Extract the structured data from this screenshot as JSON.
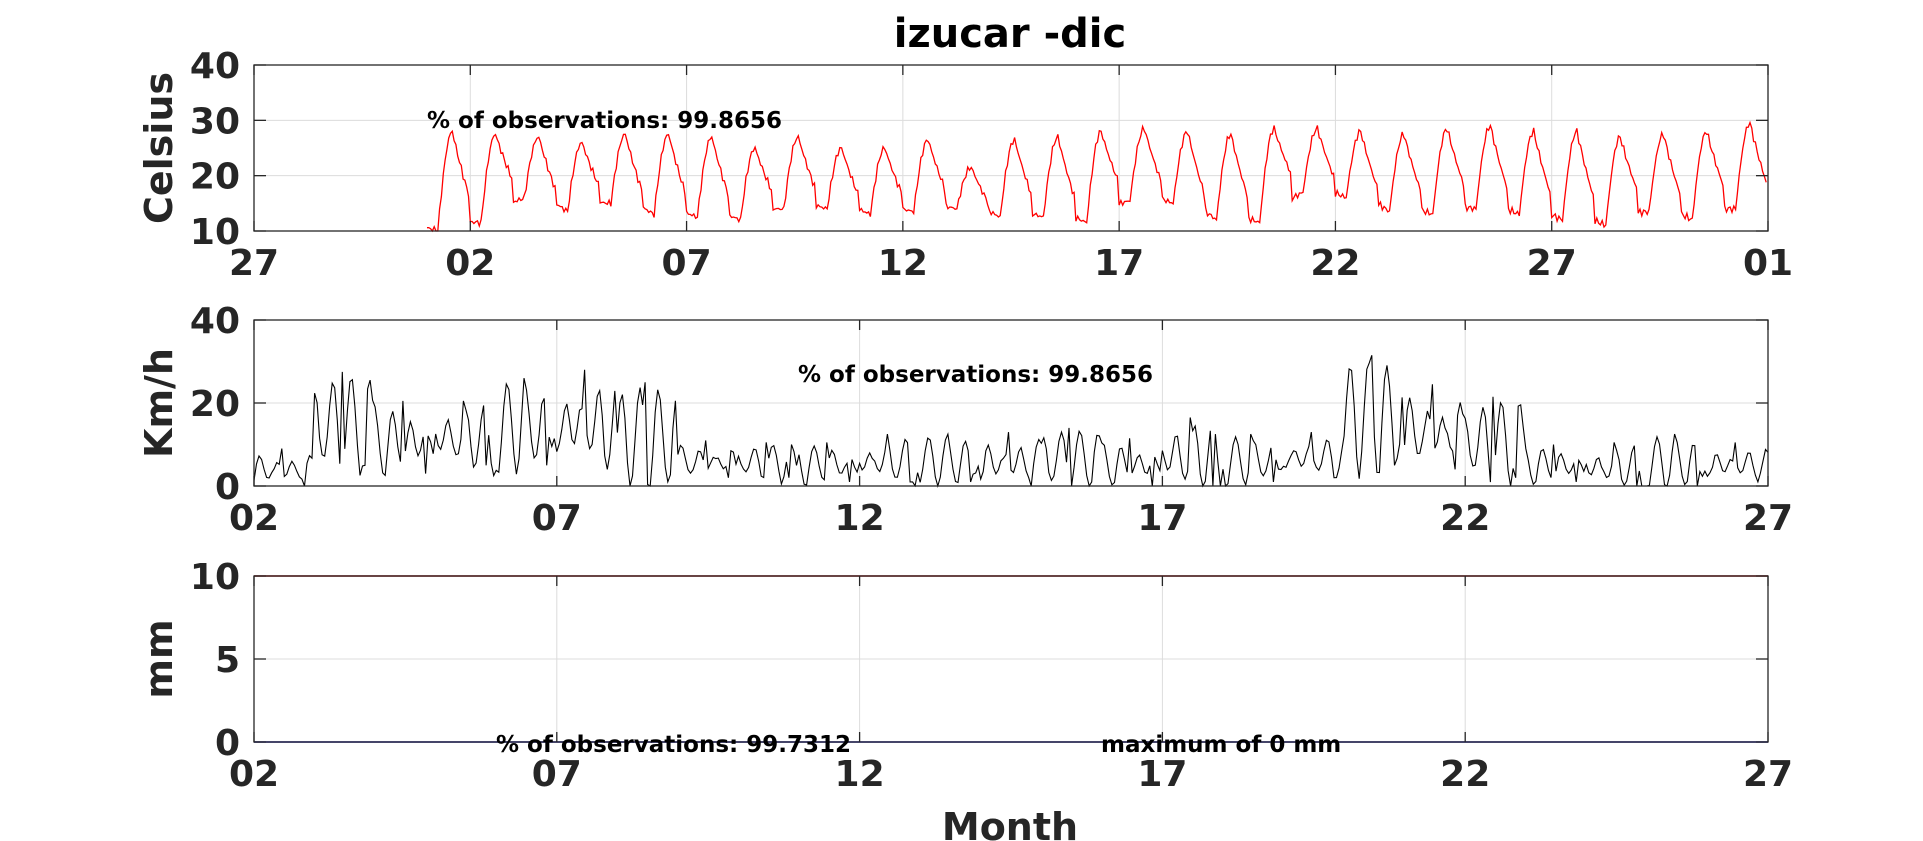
{
  "chart_data": [
    {
      "type": "line",
      "title": "izucar -dic",
      "ylabel": "Celsius",
      "ylim": [
        10,
        40
      ],
      "yticks": [
        10,
        20,
        30,
        40
      ],
      "xticks": [
        "27",
        "02",
        "07",
        "12",
        "17",
        "22",
        "27",
        "01"
      ],
      "annotation": "% of observations: 99.8656",
      "series": [
        {
          "color": "#ff0000",
          "x_unit": "day of month (27 = prior month)",
          "start_day": 31,
          "end_day": 66,
          "daily_max": [
            28,
            27.5,
            27,
            26,
            27.5,
            27.5,
            27,
            25,
            27,
            25,
            25,
            26.5,
            21.5,
            26.5,
            27,
            28,
            28.5,
            28,
            27.5,
            28.5,
            28.5,
            28,
            27.5,
            28.5,
            29,
            28,
            28,
            27,
            27.5,
            28,
            29.5
          ],
          "daily_min": [
            10,
            11.5,
            16,
            13.5,
            15,
            13,
            12.5,
            12,
            14,
            14,
            13,
            13.5,
            14,
            12.5,
            12.5,
            11.5,
            15.5,
            15,
            12,
            11.5,
            17,
            16,
            13.5,
            13,
            14,
            13,
            12,
            11,
            13.5,
            12,
            14
          ]
        }
      ]
    },
    {
      "type": "line",
      "ylabel": "Km/h",
      "ylim": [
        0,
        40
      ],
      "yticks": [
        0,
        20,
        40
      ],
      "xticks": [
        "02",
        "07",
        "12",
        "17",
        "22",
        "27"
      ],
      "annotation": "% of observations: 99.8656",
      "series": [
        {
          "color": "#000000",
          "x_unit": "day of month",
          "start_day": 2,
          "end_day": 27,
          "daily_max": [
            9,
            27.5,
            20.5,
            20.5,
            26,
            28,
            25,
            11,
            10.5,
            10.5,
            12.5,
            12.5,
            13,
            14,
            11.5,
            16.5,
            12.5,
            13,
            31.5,
            24.5,
            21.5,
            10,
            10.5,
            12.5,
            10.5,
            13
          ],
          "daily_min": [
            0,
            5,
            3,
            5,
            5,
            4,
            1,
            2,
            2,
            1,
            1,
            1,
            0,
            1,
            0,
            0,
            1,
            2,
            5,
            4,
            2,
            1,
            0,
            0,
            1,
            2
          ]
        }
      ]
    },
    {
      "type": "line",
      "ylabel": "mm",
      "xlabel": "Month",
      "ylim": [
        0,
        10
      ],
      "yticks": [
        0,
        5,
        10
      ],
      "xticks": [
        "02",
        "07",
        "12",
        "17",
        "22",
        "27"
      ],
      "annotations": [
        "% of observations: 99.7312",
        "maximum of 0 mm"
      ],
      "series": [
        {
          "color": "#0000cc",
          "x_unit": "day of month",
          "x": [
            2,
            27
          ],
          "values": [
            0,
            0
          ]
        },
        {
          "color": "#cc0000",
          "x_unit": "day of month",
          "x": [
            2,
            27
          ],
          "values": [
            10,
            10
          ]
        }
      ]
    }
  ]
}
